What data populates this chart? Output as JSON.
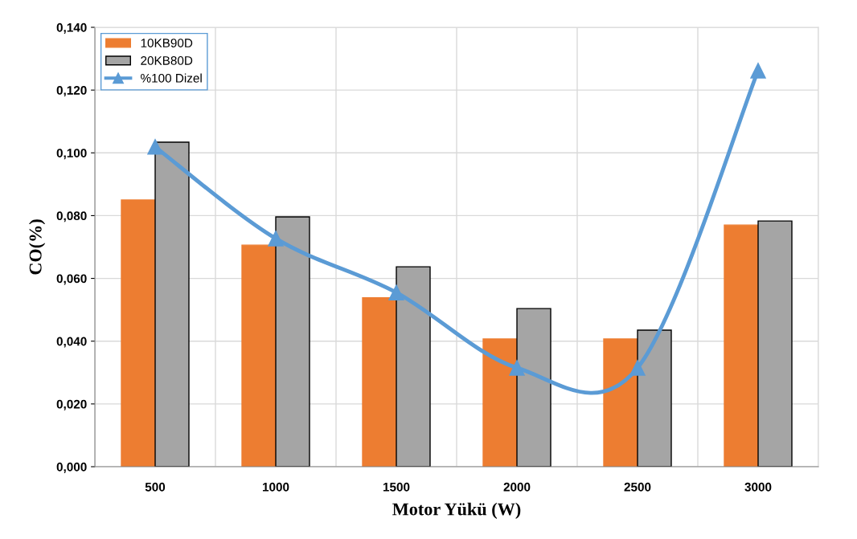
{
  "chart_data": {
    "type": "bar",
    "xlabel": "Motor Yükü (W)",
    "ylabel": "CO(%)",
    "categories": [
      "500",
      "1000",
      "1500",
      "2000",
      "2500",
      "3000"
    ],
    "series": [
      {
        "name": "10KB90D",
        "color": "#ed7d31",
        "values": [
          0.085,
          0.0706,
          0.0538,
          0.0407,
          0.0407,
          0.077
        ]
      },
      {
        "name": "20KB80D",
        "color": "#a5a5a5",
        "values": [
          0.1034,
          0.0796,
          0.0637,
          0.0504,
          0.0435,
          0.0783
        ]
      },
      {
        "name": "%100 Dizel",
        "type": "line",
        "color": "#5b9bd5",
        "marker": "triangle",
        "values": [
          0.1019,
          0.0727,
          0.0555,
          0.0315,
          0.0315,
          0.1262
        ]
      }
    ],
    "ylim": [
      0,
      0.14
    ],
    "yticks": [
      {
        "value": 0,
        "label": "0,000"
      },
      {
        "value": 0.02,
        "label": "0,020"
      },
      {
        "value": 0.04,
        "label": "0,040"
      },
      {
        "value": 0.06,
        "label": "0,060"
      },
      {
        "value": 0.08,
        "label": "0,080"
      },
      {
        "value": 0.1,
        "label": "0,100"
      },
      {
        "value": 0.12,
        "label": "0,120"
      },
      {
        "value": 0.14,
        "label": "0,140"
      }
    ],
    "grid": true,
    "legend": "top left"
  }
}
